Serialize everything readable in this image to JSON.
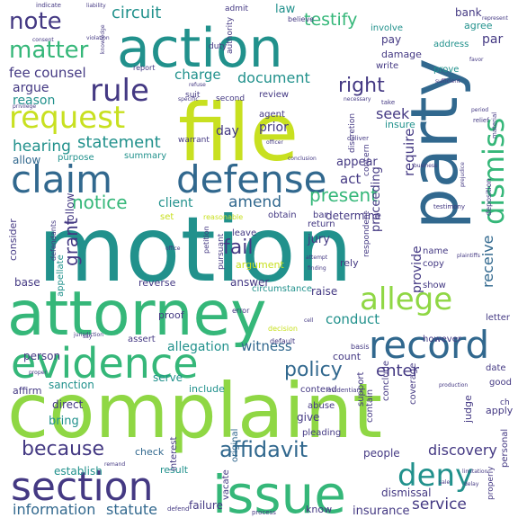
{
  "palette": {
    "dark": "#3b2a6b",
    "indigo": "#443983",
    "blue": "#31688e",
    "teal": "#21918c",
    "green": "#35b779",
    "lime": "#8fd744",
    "yellow": "#c8e020"
  },
  "words": [
    {
      "text": "motion"
    },
    {
      "text": "complaint"
    },
    {
      "text": "attorney"
    },
    {
      "text": "file"
    },
    {
      "text": "action"
    },
    {
      "text": "party"
    },
    {
      "text": "issue"
    },
    {
      "text": "evidence"
    },
    {
      "text": "claim"
    },
    {
      "text": "defense"
    },
    {
      "text": "record"
    },
    {
      "text": "section"
    },
    {
      "text": "request"
    },
    {
      "text": "rule"
    },
    {
      "text": "dismiss"
    },
    {
      "text": "deny"
    },
    {
      "text": "allege"
    },
    {
      "text": "note"
    },
    {
      "text": "matter"
    },
    {
      "text": "affidavit"
    },
    {
      "text": "notice"
    },
    {
      "text": "because"
    },
    {
      "text": "policy"
    },
    {
      "text": "statement"
    },
    {
      "text": "present"
    },
    {
      "text": "grant"
    },
    {
      "text": "right"
    },
    {
      "text": "hearing"
    },
    {
      "text": "circuit"
    },
    {
      "text": "testify"
    },
    {
      "text": "document"
    },
    {
      "text": "fee"
    },
    {
      "text": "counsel"
    },
    {
      "text": "reason"
    },
    {
      "text": "argue"
    },
    {
      "text": "charge"
    },
    {
      "text": "fail"
    },
    {
      "text": "amend"
    },
    {
      "text": "enter"
    },
    {
      "text": "discovery"
    },
    {
      "text": "information"
    },
    {
      "text": "statute"
    },
    {
      "text": "service"
    },
    {
      "text": "insurance"
    },
    {
      "text": "dismissal"
    },
    {
      "text": "allegation"
    },
    {
      "text": "witness"
    },
    {
      "text": "conduct"
    },
    {
      "text": "provide"
    },
    {
      "text": "receive"
    },
    {
      "text": "proceeding"
    },
    {
      "text": "require"
    },
    {
      "text": "seek"
    },
    {
      "text": "law"
    },
    {
      "text": "act"
    },
    {
      "text": "day"
    },
    {
      "text": "client"
    },
    {
      "text": "prior"
    },
    {
      "text": "review"
    },
    {
      "text": "agent"
    },
    {
      "text": "appear"
    },
    {
      "text": "determine"
    },
    {
      "text": "jury"
    },
    {
      "text": "argument"
    },
    {
      "text": "answer"
    },
    {
      "text": "raise"
    },
    {
      "text": "sanction"
    },
    {
      "text": "serve"
    },
    {
      "text": "include"
    },
    {
      "text": "count"
    },
    {
      "text": "contend"
    },
    {
      "text": "bring"
    },
    {
      "text": "direct"
    },
    {
      "text": "check"
    },
    {
      "text": "result"
    },
    {
      "text": "establish"
    },
    {
      "text": "people"
    },
    {
      "text": "judge"
    },
    {
      "text": "coverage"
    },
    {
      "text": "bank"
    },
    {
      "text": "agree"
    },
    {
      "text": "par"
    },
    {
      "text": "address"
    },
    {
      "text": "prove"
    },
    {
      "text": "damage"
    },
    {
      "text": "pay"
    },
    {
      "text": "write"
    },
    {
      "text": "involve"
    },
    {
      "text": "insure"
    },
    {
      "text": "allow"
    },
    {
      "text": "purpose"
    },
    {
      "text": "summary"
    },
    {
      "text": "set"
    },
    {
      "text": "follow"
    },
    {
      "text": "consider"
    },
    {
      "text": "base"
    },
    {
      "text": "appellate"
    },
    {
      "text": "leave"
    },
    {
      "text": "pursuant"
    },
    {
      "text": "reverse"
    },
    {
      "text": "circumstance"
    },
    {
      "text": "proof"
    },
    {
      "text": "person"
    },
    {
      "text": "affirm"
    },
    {
      "text": "assert"
    },
    {
      "text": "support"
    },
    {
      "text": "pleading"
    },
    {
      "text": "give"
    },
    {
      "text": "vacate"
    },
    {
      "text": "original"
    },
    {
      "text": "interest"
    },
    {
      "text": "failure"
    },
    {
      "text": "know"
    },
    {
      "text": "return"
    },
    {
      "text": "bar"
    },
    {
      "text": "obtain"
    },
    {
      "text": "rely"
    },
    {
      "text": "name"
    },
    {
      "text": "copy"
    },
    {
      "text": "show"
    },
    {
      "text": "letter"
    },
    {
      "text": "however"
    },
    {
      "text": "date"
    },
    {
      "text": "good"
    },
    {
      "text": "apply"
    },
    {
      "text": "contain"
    },
    {
      "text": "conclude"
    },
    {
      "text": "abuse"
    },
    {
      "text": "respondent"
    },
    {
      "text": "concern"
    },
    {
      "text": "deposition"
    },
    {
      "text": "personal"
    },
    {
      "text": "properly"
    },
    {
      "text": "admit"
    },
    {
      "text": "duty"
    },
    {
      "text": "authority"
    },
    {
      "text": "believe"
    },
    {
      "text": "suit"
    },
    {
      "text": "second"
    },
    {
      "text": "discretion"
    },
    {
      "text": "warrant"
    },
    {
      "text": "report"
    },
    {
      "text": "reasonable"
    },
    {
      "text": "defendants"
    },
    {
      "text": "error"
    },
    {
      "text": "decision"
    },
    {
      "text": "default"
    },
    {
      "text": "basis"
    },
    {
      "text": "petition"
    },
    {
      "text": "evidentiary"
    },
    {
      "text": "material"
    },
    {
      "text": "testimony"
    },
    {
      "text": "relief"
    },
    {
      "text": "liability"
    },
    {
      "text": "violation"
    },
    {
      "text": "consent"
    },
    {
      "text": "knowledge"
    },
    {
      "text": "specific"
    },
    {
      "text": "refuse"
    },
    {
      "text": "privilege"
    },
    {
      "text": "jurisdiction"
    },
    {
      "text": "indicate"
    },
    {
      "text": "office"
    },
    {
      "text": "finding"
    },
    {
      "text": "attempt"
    },
    {
      "text": "plaintiffs"
    },
    {
      "text": "remand"
    },
    {
      "text": "defend"
    },
    {
      "text": "delay"
    },
    {
      "text": "limitation"
    },
    {
      "text": "production"
    },
    {
      "text": "process"
    },
    {
      "text": "sufficient"
    },
    {
      "text": "favor"
    },
    {
      "text": "cell"
    },
    {
      "text": "say"
    },
    {
      "text": "business"
    },
    {
      "text": "prejudice"
    },
    {
      "text": "period"
    },
    {
      "text": "represent"
    },
    {
      "text": "necessary"
    },
    {
      "text": "officer"
    },
    {
      "text": "deliver"
    },
    {
      "text": "take"
    },
    {
      "text": "conclusion"
    },
    {
      "text": "sale"
    },
    {
      "text": "proper"
    },
    {
      "text": "ch"
    }
  ]
}
